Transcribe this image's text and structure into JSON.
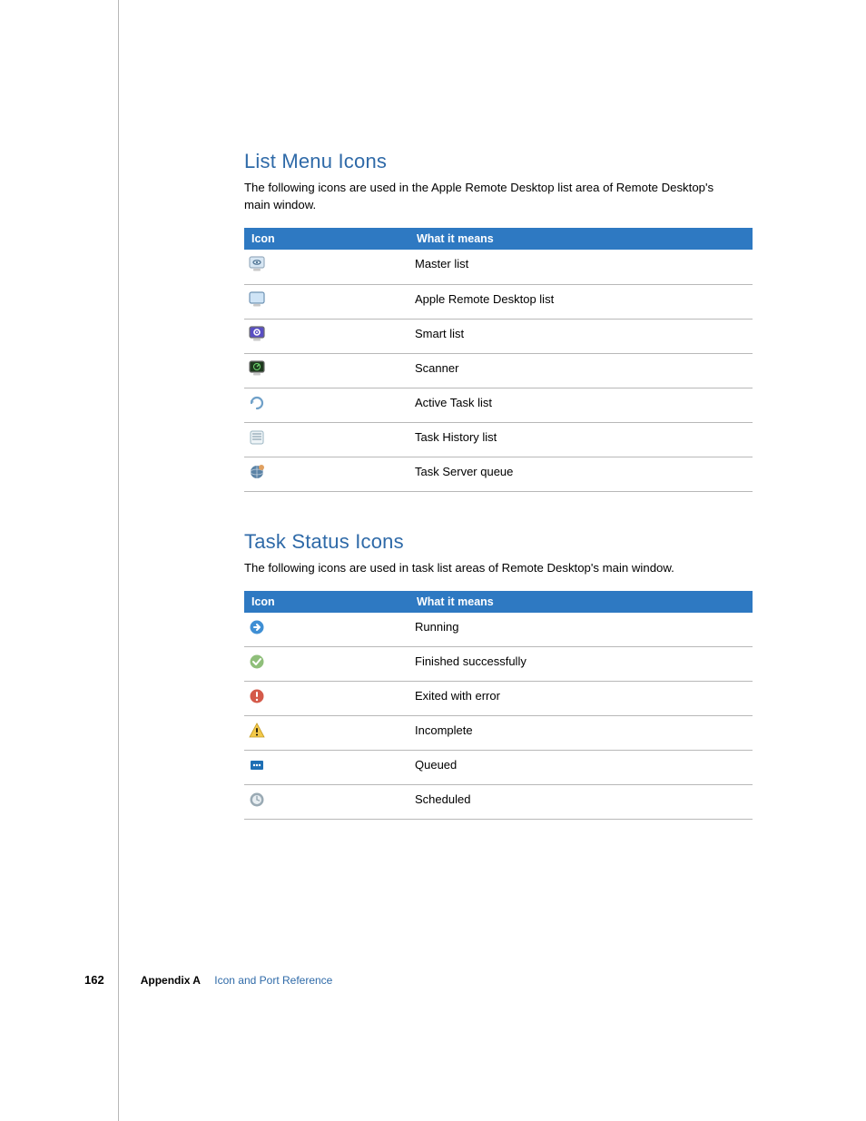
{
  "colors": {
    "heading": "#2f6aa8",
    "table_header_bg": "#2e79c2",
    "table_header_fg": "#ffffff",
    "rule": "#b8b8b8",
    "body_text": "#000000",
    "footer_link": "#2f6aa8"
  },
  "sections": {
    "list_menu": {
      "title": "List Menu Icons",
      "intro": "The following icons are used in the Apple Remote Desktop list area of Remote Desktop's main window.",
      "columns": [
        "Icon",
        "What it means"
      ],
      "rows": [
        {
          "icon": "master-list-icon",
          "meaning": "Master list"
        },
        {
          "icon": "ard-list-icon",
          "meaning": "Apple Remote Desktop list"
        },
        {
          "icon": "smart-list-icon",
          "meaning": "Smart list"
        },
        {
          "icon": "scanner-icon",
          "meaning": "Scanner"
        },
        {
          "icon": "active-task-icon",
          "meaning": "Active Task list"
        },
        {
          "icon": "task-history-icon",
          "meaning": "Task History list"
        },
        {
          "icon": "task-server-icon",
          "meaning": "Task Server queue"
        }
      ]
    },
    "task_status": {
      "title": "Task Status Icons",
      "intro": "The following icons are used in task list areas of Remote Desktop's main window.",
      "columns": [
        "Icon",
        "What it means"
      ],
      "rows": [
        {
          "icon": "running-icon",
          "meaning": "Running"
        },
        {
          "icon": "finished-icon",
          "meaning": "Finished successfully"
        },
        {
          "icon": "error-icon",
          "meaning": "Exited with error"
        },
        {
          "icon": "incomplete-icon",
          "meaning": "Incomplete"
        },
        {
          "icon": "queued-icon",
          "meaning": "Queued"
        },
        {
          "icon": "scheduled-icon",
          "meaning": "Scheduled"
        }
      ]
    }
  },
  "icon_styles": {
    "master-list-icon": {
      "shape": "monitor",
      "screen_fill": "#d7e6f3",
      "frame": "#9aaec0",
      "glyph": "eye",
      "glyph_color": "#4a6f8f"
    },
    "ard-list-icon": {
      "shape": "monitor",
      "screen_fill": "#cfe4f6",
      "frame": "#6f93b4",
      "glyph": "none"
    },
    "smart-list-icon": {
      "shape": "monitor",
      "screen_fill": "#5a4fc4",
      "frame": "#6d6d6d",
      "glyph": "gear",
      "glyph_color": "#ffffff"
    },
    "scanner-icon": {
      "shape": "monitor",
      "screen_fill": "#1e3a1e",
      "frame": "#6d6d6d",
      "glyph": "radar",
      "glyph_color": "#6fd66f"
    },
    "active-task-icon": {
      "shape": "arrow-cw",
      "stroke": "#6fa0c8",
      "fill": "#e3eef7"
    },
    "task-history-icon": {
      "shape": "list-card",
      "stroke": "#9bb4c2",
      "fill": "#eef4f7",
      "line_color": "#8aa0b0"
    },
    "task-server-icon": {
      "shape": "globe-badge",
      "fill": "#5b83a6",
      "badge": "#e0a060"
    },
    "running-icon": {
      "shape": "circle-arrow-right",
      "fill": "#3f8fd4",
      "glyph_color": "#ffffff"
    },
    "finished-icon": {
      "shape": "circle-check",
      "fill": "#8fbf7a",
      "glyph_color": "#ffffff"
    },
    "error-icon": {
      "shape": "circle-exclaim",
      "fill": "#d45a4a",
      "glyph_color": "#ffffff"
    },
    "incomplete-icon": {
      "shape": "triangle-exclaim",
      "fill": "#f3c94a",
      "glyph_color": "#000000"
    },
    "queued-icon": {
      "shape": "square-dots",
      "fill": "#1e6fb4",
      "glyph_color": "#ffffff"
    },
    "scheduled-icon": {
      "shape": "circle-clock",
      "fill": "#9aaab4",
      "glyph_color": "#e8eef2"
    }
  },
  "footer": {
    "page_number": "162",
    "appendix_label": "Appendix A",
    "appendix_title": "Icon and Port Reference"
  }
}
